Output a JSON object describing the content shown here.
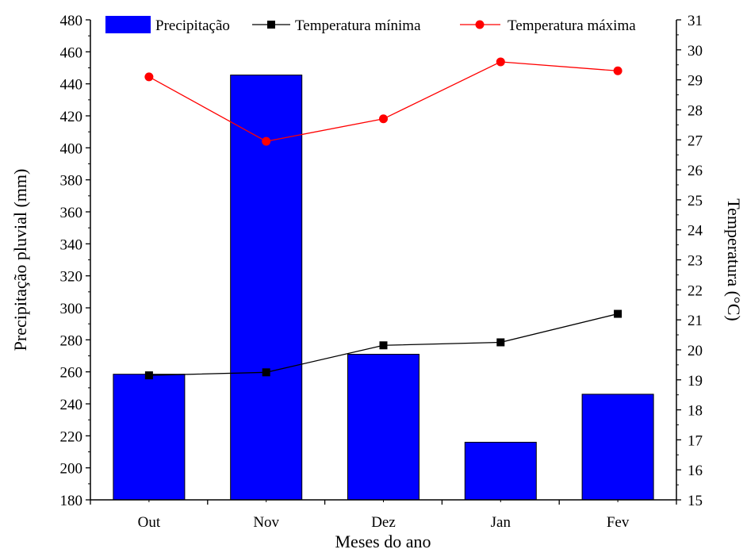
{
  "chart_data": {
    "type": "bar+line",
    "categories": [
      "Out",
      "Nov",
      "Dez",
      "Jan",
      "Fev"
    ],
    "xlabel": "Meses do ano",
    "ylabel_left": "Precipitação pluvial (mm)",
    "ylabel_right": "Temperatura (°C)",
    "ylim_left": [
      180,
      480
    ],
    "ylim_right": [
      15,
      31
    ],
    "yticks_left": [
      180,
      200,
      220,
      240,
      260,
      280,
      300,
      320,
      340,
      360,
      380,
      400,
      420,
      440,
      460,
      480
    ],
    "yticks_right": [
      15,
      16,
      17,
      18,
      19,
      20,
      21,
      22,
      23,
      24,
      25,
      26,
      27,
      28,
      29,
      30,
      31
    ],
    "grid": false,
    "legend_position": "top",
    "bar_series": {
      "name": "Precipitação",
      "axis": "left",
      "color": "#0000ff",
      "values": [
        258.5,
        445.5,
        271,
        216,
        246
      ]
    },
    "line_series": [
      {
        "name": "Temperatura mínima",
        "axis": "right",
        "color": "#000000",
        "marker": "square",
        "values": [
          19.15,
          19.25,
          20.15,
          20.25,
          21.2
        ]
      },
      {
        "name": "Temperatura máxima",
        "axis": "right",
        "color": "#ff0000",
        "marker": "circle",
        "values": [
          29.1,
          26.95,
          27.7,
          29.6,
          29.3
        ]
      }
    ]
  }
}
